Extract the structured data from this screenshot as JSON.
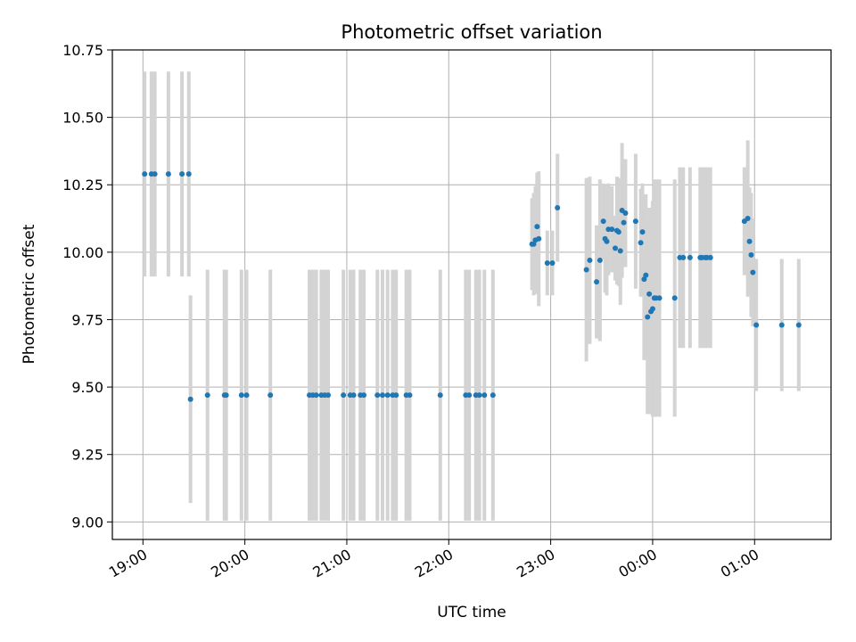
{
  "chart_data": {
    "type": "scatter",
    "title": "Photometric offset variation",
    "xlabel": "UTC time",
    "ylabel": "Photometric offset",
    "x_axis_kind": "datetime",
    "x_range": [
      "18:42",
      "01:45"
    ],
    "ylim": [
      8.935,
      10.75
    ],
    "grid": true,
    "legend": "none",
    "x_ticks": [
      "19:00",
      "20:00",
      "21:00",
      "22:00",
      "23:00",
      "00:00",
      "01:00"
    ],
    "y_ticks": [
      "9.00",
      "9.25",
      "9.50",
      "9.75",
      "10.00",
      "10.25",
      "10.50",
      "10.75"
    ],
    "colors": {
      "point": "#1f77b4",
      "errorbar": "#d3d3d3",
      "grid": "#b0b0b0"
    },
    "series": [
      {
        "points": [
          {
            "x": "19:01",
            "y": 10.29,
            "err": 0.38
          },
          {
            "x": "19:05",
            "y": 10.29,
            "err": 0.38
          },
          {
            "x": "19:07",
            "y": 10.29,
            "err": 0.38
          },
          {
            "x": "19:15",
            "y": 10.29,
            "err": 0.38
          },
          {
            "x": "19:23",
            "y": 10.29,
            "err": 0.38
          },
          {
            "x": "19:27",
            "y": 10.29,
            "err": 0.38
          },
          {
            "x": "19:28",
            "y": 9.455,
            "err": 0.385
          },
          {
            "x": "19:38",
            "y": 9.47,
            "err": 0.465
          },
          {
            "x": "19:48",
            "y": 9.47,
            "err": 0.465
          },
          {
            "x": "19:49",
            "y": 9.47,
            "err": 0.465
          },
          {
            "x": "19:58",
            "y": 9.47,
            "err": 0.465
          },
          {
            "x": "20:01",
            "y": 9.47,
            "err": 0.465
          },
          {
            "x": "20:15",
            "y": 9.47,
            "err": 0.465
          },
          {
            "x": "20:38",
            "y": 9.47,
            "err": 0.465
          },
          {
            "x": "20:40",
            "y": 9.47,
            "err": 0.465
          },
          {
            "x": "20:42",
            "y": 9.47,
            "err": 0.465
          },
          {
            "x": "20:45",
            "y": 9.47,
            "err": 0.465
          },
          {
            "x": "20:47",
            "y": 9.47,
            "err": 0.465
          },
          {
            "x": "20:49",
            "y": 9.47,
            "err": 0.465
          },
          {
            "x": "20:58",
            "y": 9.47,
            "err": 0.465
          },
          {
            "x": "21:02",
            "y": 9.47,
            "err": 0.465
          },
          {
            "x": "21:04",
            "y": 9.47,
            "err": 0.465
          },
          {
            "x": "21:08",
            "y": 9.47,
            "err": 0.465
          },
          {
            "x": "21:10",
            "y": 9.47,
            "err": 0.465
          },
          {
            "x": "21:18",
            "y": 9.47,
            "err": 0.465
          },
          {
            "x": "21:21",
            "y": 9.47,
            "err": 0.465
          },
          {
            "x": "21:24",
            "y": 9.47,
            "err": 0.465
          },
          {
            "x": "21:27",
            "y": 9.47,
            "err": 0.465
          },
          {
            "x": "21:29",
            "y": 9.47,
            "err": 0.465
          },
          {
            "x": "21:35",
            "y": 9.47,
            "err": 0.465
          },
          {
            "x": "21:37",
            "y": 9.47,
            "err": 0.465
          },
          {
            "x": "21:55",
            "y": 9.47,
            "err": 0.465
          },
          {
            "x": "22:10",
            "y": 9.47,
            "err": 0.465
          },
          {
            "x": "22:12",
            "y": 9.47,
            "err": 0.465
          },
          {
            "x": "22:16",
            "y": 9.47,
            "err": 0.465
          },
          {
            "x": "22:18",
            "y": 9.47,
            "err": 0.465
          },
          {
            "x": "22:21",
            "y": 9.47,
            "err": 0.465
          },
          {
            "x": "22:26",
            "y": 9.47,
            "err": 0.465
          },
          {
            "x": "22:49",
            "y": 10.03,
            "err": 0.17
          },
          {
            "x": "22:50",
            "y": 10.03,
            "err": 0.19
          },
          {
            "x": "22:51",
            "y": 10.045,
            "err": 0.2
          },
          {
            "x": "22:52",
            "y": 10.095,
            "err": 0.2
          },
          {
            "x": "22:53",
            "y": 10.05,
            "err": 0.25
          },
          {
            "x": "22:58",
            "y": 9.96,
            "err": 0.12
          },
          {
            "x": "23:01",
            "y": 9.96,
            "err": 0.12
          },
          {
            "x": "23:04",
            "y": 10.165,
            "err": 0.2
          },
          {
            "x": "23:21",
            "y": 9.935,
            "err": 0.34
          },
          {
            "x": "23:23",
            "y": 9.97,
            "err": 0.31
          },
          {
            "x": "23:27",
            "y": 9.89,
            "err": 0.21
          },
          {
            "x": "23:29",
            "y": 9.97,
            "err": 0.3
          },
          {
            "x": "23:31",
            "y": 10.115,
            "err": 0.14
          },
          {
            "x": "23:32",
            "y": 10.05,
            "err": 0.2
          },
          {
            "x": "23:33",
            "y": 10.04,
            "err": 0.2
          },
          {
            "x": "23:34",
            "y": 10.085,
            "err": 0.17
          },
          {
            "x": "23:36",
            "y": 10.085,
            "err": 0.16
          },
          {
            "x": "23:38",
            "y": 10.015,
            "err": 0.12
          },
          {
            "x": "23:39",
            "y": 10.08,
            "err": 0.2
          },
          {
            "x": "23:40",
            "y": 10.075,
            "err": 0.2
          },
          {
            "x": "23:41",
            "y": 10.005,
            "err": 0.2
          },
          {
            "x": "23:42",
            "y": 10.155,
            "err": 0.25
          },
          {
            "x": "23:43",
            "y": 10.11,
            "err": 0.16
          },
          {
            "x": "23:44",
            "y": 10.145,
            "err": 0.2
          },
          {
            "x": "23:50",
            "y": 10.115,
            "err": 0.25
          },
          {
            "x": "23:53",
            "y": 10.035,
            "err": 0.2
          },
          {
            "x": "23:54",
            "y": 10.075,
            "err": 0.18
          },
          {
            "x": "23:55",
            "y": 9.9,
            "err": 0.3
          },
          {
            "x": "23:56",
            "y": 9.915,
            "err": 0.3
          },
          {
            "x": "23:57",
            "y": 9.76,
            "err": 0.36
          },
          {
            "x": "23:58",
            "y": 9.845,
            "err": 0.32
          },
          {
            "x": "23:59",
            "y": 9.78,
            "err": 0.38
          },
          {
            "x": "00:00",
            "y": 9.79,
            "err": 0.4
          },
          {
            "x": "00:01",
            "y": 9.83,
            "err": 0.44
          },
          {
            "x": "00:02",
            "y": 9.83,
            "err": 0.44
          },
          {
            "x": "00:04",
            "y": 9.83,
            "err": 0.44
          },
          {
            "x": "00:13",
            "y": 9.83,
            "err": 0.44
          },
          {
            "x": "00:16",
            "y": 9.98,
            "err": 0.335
          },
          {
            "x": "00:18",
            "y": 9.98,
            "err": 0.335
          },
          {
            "x": "00:22",
            "y": 9.98,
            "err": 0.335
          },
          {
            "x": "00:28",
            "y": 9.98,
            "err": 0.335
          },
          {
            "x": "00:29",
            "y": 9.98,
            "err": 0.335
          },
          {
            "x": "00:31",
            "y": 9.98,
            "err": 0.335
          },
          {
            "x": "00:32",
            "y": 9.98,
            "err": 0.335
          },
          {
            "x": "00:34",
            "y": 9.98,
            "err": 0.335
          },
          {
            "x": "00:54",
            "y": 10.115,
            "err": 0.2
          },
          {
            "x": "00:56",
            "y": 10.125,
            "err": 0.29
          },
          {
            "x": "00:57",
            "y": 10.04,
            "err": 0.2
          },
          {
            "x": "00:58",
            "y": 9.99,
            "err": 0.23
          },
          {
            "x": "00:59",
            "y": 9.925,
            "err": 0.2
          },
          {
            "x": "01:01",
            "y": 9.73,
            "err": 0.245
          },
          {
            "x": "01:16",
            "y": 9.73,
            "err": 0.245
          },
          {
            "x": "01:26",
            "y": 9.73,
            "err": 0.245
          }
        ]
      }
    ]
  }
}
